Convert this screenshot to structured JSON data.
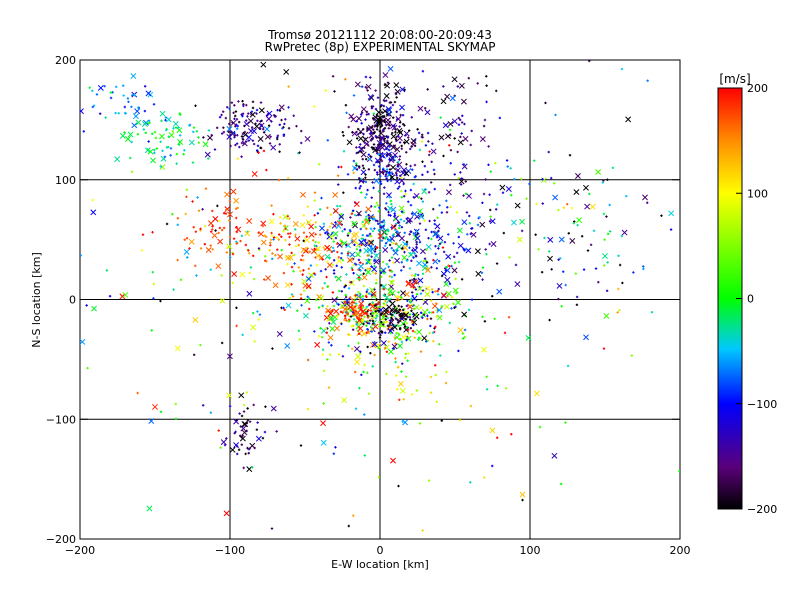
{
  "chart_data": {
    "type": "scatter",
    "title": "Tromsø 20121112 20:08:00-20:09:43",
    "subtitle": "RwPretec (8p) EXPERIMENTAL SKYMAP",
    "xlabel": "E-W location [km]",
    "ylabel": "N-S location [km]",
    "xlim": [
      -200,
      200
    ],
    "ylim": [
      -200,
      200
    ],
    "xticks": [
      -200,
      -100,
      0,
      100,
      200
    ],
    "yticks": [
      -200,
      -100,
      0,
      100,
      200
    ],
    "grid": true,
    "colorbar": {
      "label": "[m/s]",
      "range": [
        -200,
        200
      ],
      "ticks": [
        200,
        100,
        0,
        -100,
        -200
      ],
      "colormap": "rainbow: black(-200) → purple → blue(-100) → cyan → green(0) → yellow(100) → red(200)"
    },
    "markers": {
      "dot": "small dot/plus",
      "cross": "x"
    },
    "clusters": [
      {
        "cx": 0,
        "cy": 140,
        "sx": 10,
        "sy": 20,
        "n": 260,
        "vmu": -170,
        "vsd": 35
      },
      {
        "cx": 5,
        "cy": 110,
        "sx": 12,
        "sy": 12,
        "n": 90,
        "vmu": -110,
        "vsd": 40
      },
      {
        "cx": -5,
        "cy": 50,
        "sx": 20,
        "sy": 18,
        "n": 260,
        "vmu": -60,
        "vsd": 60
      },
      {
        "cx": -45,
        "cy": 45,
        "sx": 25,
        "sy": 18,
        "n": 160,
        "vmu": 150,
        "vsd": 50
      },
      {
        "cx": 30,
        "cy": 50,
        "sx": 25,
        "sy": 25,
        "n": 120,
        "vmu": -130,
        "vsd": 40
      },
      {
        "cx": 0,
        "cy": -10,
        "sx": 25,
        "sy": 18,
        "n": 420,
        "vmu": 20,
        "vsd": 110
      },
      {
        "cx": 10,
        "cy": -15,
        "sx": 10,
        "sy": 8,
        "n": 80,
        "vmu": -190,
        "vsd": 10
      },
      {
        "cx": -15,
        "cy": -10,
        "sx": 8,
        "sy": 6,
        "n": 60,
        "vmu": 180,
        "vsd": 15
      },
      {
        "cx": -85,
        "cy": 145,
        "sx": 15,
        "sy": 12,
        "n": 140,
        "vmu": -150,
        "vsd": 35
      },
      {
        "cx": -145,
        "cy": 135,
        "sx": 12,
        "sy": 12,
        "n": 70,
        "vmu": -20,
        "vsd": 25
      },
      {
        "cx": -170,
        "cy": 165,
        "sx": 15,
        "sy": 10,
        "n": 40,
        "vmu": -70,
        "vsd": 30
      },
      {
        "cx": -110,
        "cy": 60,
        "sx": 15,
        "sy": 18,
        "n": 60,
        "vmu": 180,
        "vsd": 20
      },
      {
        "cx": 40,
        "cy": 140,
        "sx": 25,
        "sy": 25,
        "n": 90,
        "vmu": -160,
        "vsd": 30
      },
      {
        "cx": -90,
        "cy": -115,
        "sx": 10,
        "sy": 15,
        "n": 50,
        "vmu": -170,
        "vsd": 30
      },
      {
        "cx": 20,
        "cy": -50,
        "sx": 30,
        "sy": 40,
        "n": 70,
        "vmu": 80,
        "vsd": 100
      },
      {
        "cx": 120,
        "cy": 50,
        "sx": 45,
        "sy": 40,
        "n": 90,
        "vmu": -120,
        "vsd": 110
      },
      {
        "cx": -60,
        "cy": 20,
        "sx": 60,
        "sy": 70,
        "n": 120,
        "vmu": 40,
        "vsd": 140
      },
      {
        "cx": 0,
        "cy": 0,
        "sx": 110,
        "sy": 110,
        "n": 160,
        "vmu": 0,
        "vsd": 150
      },
      {
        "cx": 60,
        "cy": 80,
        "sx": 50,
        "sy": 40,
        "n": 80,
        "vmu": -100,
        "vsd": 90
      }
    ]
  }
}
